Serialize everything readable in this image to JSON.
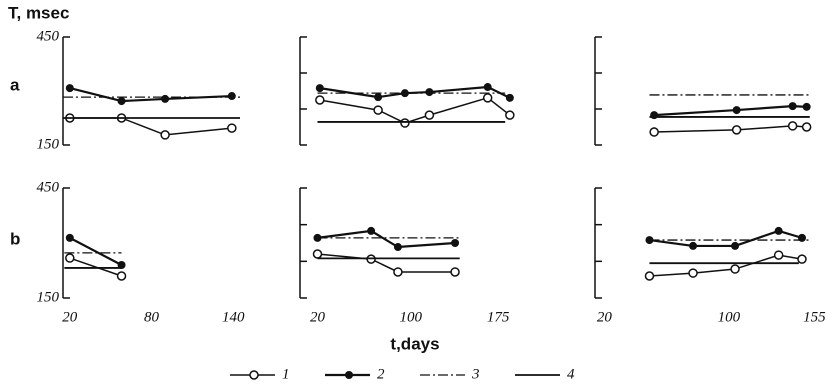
{
  "figure": {
    "ylabel": "T, msec",
    "rows": [
      "a",
      "b"
    ],
    "xlabel": "t,days"
  },
  "chart_data": [
    {
      "type": "line",
      "xlim": [
        15,
        145
      ],
      "ylim": [
        150,
        450
      ],
      "yticks": [
        150,
        450
      ],
      "show_ytick_labels": true,
      "series": [
        {
          "name": "1",
          "style": "open",
          "x": [
            20,
            58,
            90,
            139
          ],
          "values": [
            225,
            225,
            178,
            197
          ]
        },
        {
          "name": "2",
          "style": "filled",
          "x": [
            20,
            58,
            90,
            139
          ],
          "values": [
            308,
            272,
            278,
            286
          ]
        },
        {
          "name": "3",
          "style": "dashdot",
          "x": [
            15,
            145
          ],
          "values": [
            283,
            283
          ]
        },
        {
          "name": "4",
          "style": "solid",
          "x": [
            15,
            145
          ],
          "values": [
            225,
            225
          ]
        }
      ]
    },
    {
      "type": "line",
      "xlim": [
        5,
        198
      ],
      "ylim": [
        150,
        450
      ],
      "yticks": [
        150,
        250,
        350,
        450
      ],
      "show_ytick_labels": false,
      "series": [
        {
          "name": "1",
          "style": "open",
          "x": [
            22,
            72,
            95,
            116,
            166,
            185
          ],
          "values": [
            275,
            247,
            211,
            233,
            281,
            233
          ]
        },
        {
          "name": "2",
          "style": "filled",
          "x": [
            22,
            72,
            95,
            116,
            166,
            185
          ],
          "values": [
            308,
            283,
            294,
            297,
            311,
            281
          ]
        },
        {
          "name": "3",
          "style": "dashdot",
          "x": [
            20,
            181
          ],
          "values": [
            294,
            294
          ]
        },
        {
          "name": "4",
          "style": "solid",
          "x": [
            20,
            181
          ],
          "values": [
            214,
            214
          ]
        }
      ]
    },
    {
      "type": "line",
      "xlim": [
        14,
        165
      ],
      "ylim": [
        150,
        450
      ],
      "yticks": [
        150,
        250,
        350,
        450
      ],
      "show_ytick_labels": false,
      "series": [
        {
          "name": "1",
          "style": "open",
          "x": [
            52,
            105,
            141,
            150
          ],
          "values": [
            186,
            192,
            203,
            200
          ]
        },
        {
          "name": "2",
          "style": "filled",
          "x": [
            52,
            105,
            141,
            150
          ],
          "values": [
            233,
            247,
            258,
            256
          ]
        },
        {
          "name": "3",
          "style": "dashdot",
          "x": [
            49,
            152
          ],
          "values": [
            289,
            289
          ]
        },
        {
          "name": "4",
          "style": "solid",
          "x": [
            49,
            152
          ],
          "values": [
            228,
            228
          ]
        }
      ]
    },
    {
      "type": "line",
      "xlim": [
        15,
        145
      ],
      "ylim": [
        150,
        450
      ],
      "yticks": [
        150,
        450
      ],
      "show_ytick_labels": true,
      "xticks": [
        20,
        80,
        140
      ],
      "series": [
        {
          "name": "1",
          "style": "open",
          "x": [
            20,
            58
          ],
          "values": [
            259,
            210
          ]
        },
        {
          "name": "2",
          "style": "filled",
          "x": [
            20,
            58
          ],
          "values": [
            314,
            240
          ]
        },
        {
          "name": "3",
          "style": "dashdot",
          "x": [
            16,
            58
          ],
          "values": [
            273,
            273
          ]
        },
        {
          "name": "4",
          "style": "solid",
          "x": [
            16,
            58
          ],
          "values": [
            232,
            232
          ]
        }
      ]
    },
    {
      "type": "line",
      "xlim": [
        5,
        198
      ],
      "ylim": [
        150,
        450
      ],
      "yticks": [
        150,
        250,
        350,
        450
      ],
      "show_ytick_labels": false,
      "xticks": [
        20,
        100,
        175
      ],
      "series": [
        {
          "name": "1",
          "style": "open",
          "x": [
            20,
            66,
            89,
            138
          ],
          "values": [
            270,
            256,
            221,
            221
          ]
        },
        {
          "name": "2",
          "style": "filled",
          "x": [
            20,
            66,
            89,
            138
          ],
          "values": [
            314,
            333,
            289,
            300
          ]
        },
        {
          "name": "3",
          "style": "dashdot",
          "x": [
            20,
            142
          ],
          "values": [
            314,
            314
          ]
        },
        {
          "name": "4",
          "style": "solid",
          "x": [
            20,
            142
          ],
          "values": [
            258,
            258
          ]
        }
      ]
    },
    {
      "type": "line",
      "xlim": [
        14,
        165
      ],
      "ylim": [
        150,
        450
      ],
      "yticks": [
        150,
        250,
        350,
        450
      ],
      "show_ytick_labels": false,
      "xticks": [
        20,
        100,
        155
      ],
      "series": [
        {
          "name": "1",
          "style": "open",
          "x": [
            49,
            77,
            104,
            132,
            147
          ],
          "values": [
            210,
            218,
            229,
            267,
            256
          ]
        },
        {
          "name": "2",
          "style": "filled",
          "x": [
            49,
            77,
            104,
            132,
            147
          ],
          "values": [
            308,
            292,
            292,
            333,
            314
          ]
        },
        {
          "name": "3",
          "style": "dashdot",
          "x": [
            49,
            152
          ],
          "values": [
            308,
            308
          ]
        },
        {
          "name": "4",
          "style": "solid",
          "x": [
            49,
            145
          ],
          "values": [
            245,
            245
          ]
        }
      ]
    }
  ]
}
